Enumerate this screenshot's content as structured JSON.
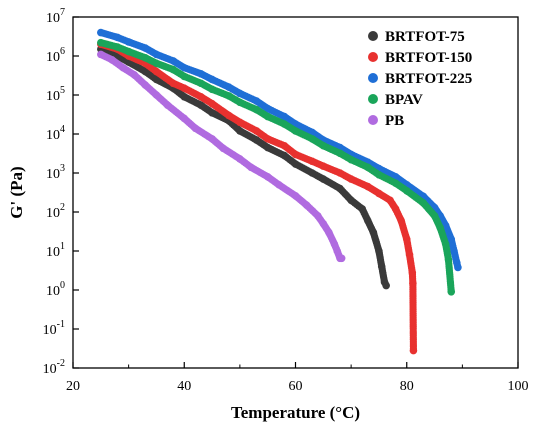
{
  "chart_data": {
    "type": "scatter",
    "title": "",
    "xlabel": "Temperature (°C)",
    "ylabel": "G' (Pa)",
    "xlim": [
      20,
      100
    ],
    "ylim_log10": [
      -2,
      7
    ],
    "y_scale": "log",
    "grid": false,
    "legend_position": "top-right",
    "x_ticks": [
      20,
      40,
      60,
      80,
      100
    ],
    "y_ticks": [
      {
        "exp": -2,
        "label": "10-2"
      },
      {
        "exp": -1,
        "label": "10-1"
      },
      {
        "exp": 0,
        "label": "100"
      },
      {
        "exp": 1,
        "label": "101"
      },
      {
        "exp": 2,
        "label": "102"
      },
      {
        "exp": 3,
        "label": "103"
      },
      {
        "exp": 4,
        "label": "104"
      },
      {
        "exp": 5,
        "label": "105"
      },
      {
        "exp": 6,
        "label": "106"
      },
      {
        "exp": 7,
        "label": "107"
      }
    ],
    "series": [
      {
        "name": "BRTFOT-75",
        "color": "#3a3a3a",
        "x": [
          25,
          28,
          30,
          33,
          35,
          38,
          40,
          43,
          45,
          48,
          50,
          53,
          55,
          58,
          60,
          63,
          65,
          68,
          70,
          72,
          73,
          74,
          75,
          75.5,
          76,
          76.3
        ],
        "y": [
          1500000,
          1000000,
          700000,
          400000,
          250000,
          150000,
          90000,
          55000,
          35000,
          22000,
          12000,
          7000,
          4500,
          2800,
          1700,
          1000,
          700,
          400,
          200,
          120,
          60,
          30,
          10,
          4,
          1.6,
          1.3
        ]
      },
      {
        "name": "BRTFOT-150",
        "color": "#e8312f",
        "x": [
          25,
          28,
          30,
          33,
          35,
          38,
          40,
          43,
          45,
          48,
          50,
          53,
          55,
          58,
          60,
          63,
          65,
          68,
          70,
          73,
          75,
          77,
          78,
          79,
          80,
          80.5,
          81,
          81.1,
          81.2
        ],
        "y": [
          2000000,
          1500000,
          1000000,
          650000,
          400000,
          200000,
          150000,
          90000,
          60000,
          30000,
          20000,
          12000,
          7500,
          5000,
          3000,
          2000,
          1500,
          1000,
          700,
          450,
          300,
          200,
          120,
          60,
          20,
          8,
          2.8,
          1.5,
          0.028
        ]
      },
      {
        "name": "BRTFOT-225",
        "color": "#1f6fd6",
        "x": [
          25,
          28,
          30,
          33,
          35,
          38,
          40,
          43,
          45,
          48,
          50,
          53,
          55,
          58,
          60,
          63,
          65,
          68,
          70,
          73,
          75,
          78,
          80,
          83,
          85,
          86,
          87,
          88,
          88.5,
          89,
          89.2
        ],
        "y": [
          4000000,
          3000000,
          2300000,
          1600000,
          1100000,
          750000,
          500000,
          350000,
          250000,
          160000,
          110000,
          70000,
          45000,
          28000,
          18000,
          11000,
          7000,
          4500,
          3000,
          1900,
          1300,
          800,
          500,
          250,
          130,
          80,
          45,
          20,
          10,
          5,
          3.8
        ]
      },
      {
        "name": "BPAV",
        "color": "#1aa55a",
        "x": [
          25,
          28,
          30,
          33,
          35,
          38,
          40,
          43,
          45,
          48,
          50,
          53,
          55,
          58,
          60,
          63,
          65,
          68,
          70,
          73,
          75,
          78,
          80,
          83,
          85,
          86,
          87,
          87.5,
          88
        ],
        "y": [
          2200000,
          1700000,
          1300000,
          900000,
          650000,
          450000,
          300000,
          200000,
          140000,
          95000,
          65000,
          42000,
          28000,
          18000,
          12000,
          7500,
          5000,
          3200,
          2200,
          1400,
          900,
          550,
          350,
          170,
          80,
          40,
          15,
          6,
          0.9
        ]
      },
      {
        "name": "PB",
        "color": "#b06be0",
        "x": [
          25,
          27,
          29,
          31,
          33,
          35,
          37,
          40,
          42,
          45,
          47,
          50,
          52,
          55,
          57,
          60,
          62,
          64,
          65,
          66,
          67,
          67.5,
          68,
          68.3
        ],
        "y": [
          1100000,
          800000,
          500000,
          330000,
          180000,
          100000,
          55000,
          25000,
          14000,
          7500,
          4300,
          2300,
          1400,
          800,
          500,
          260,
          150,
          80,
          50,
          30,
          15,
          10,
          6.5,
          6.5
        ]
      }
    ]
  }
}
